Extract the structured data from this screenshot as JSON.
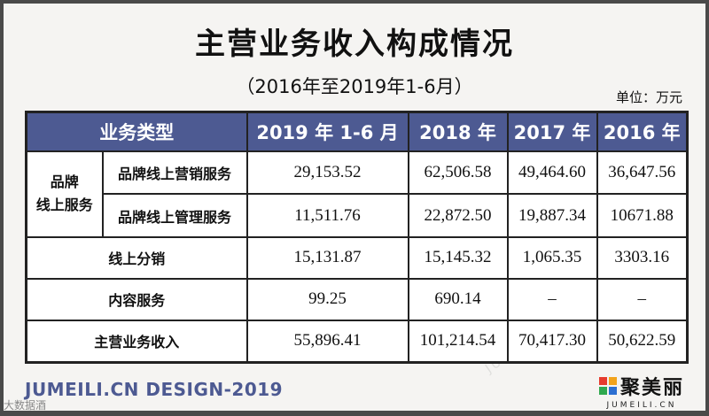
{
  "title": "主营业务收入构成情况",
  "subtitle": "（2016年至2019年1-6月）",
  "unit": "单位：万元",
  "table": {
    "headers": [
      "业务类型",
      "2019 年 1-6 月",
      "2018 年",
      "2017 年",
      "2016 年"
    ],
    "group_label": "品牌\n线上服务",
    "rows": [
      {
        "label": "品牌线上营销服务",
        "values": [
          "29,153.52",
          "62,506.58",
          "49,464.60",
          "36,647.56"
        ]
      },
      {
        "label": "品牌线上管理服务",
        "values": [
          "11,511.76",
          "22,872.50",
          "19,887.34",
          "10671.88"
        ]
      },
      {
        "label": "线上分销",
        "values": [
          "15,131.87",
          "15,145.32",
          "1,065.35",
          "3303.16"
        ]
      },
      {
        "label": "内容服务",
        "values": [
          "99.25",
          "690.14",
          "–",
          "–"
        ]
      },
      {
        "label": "主营业务收入",
        "values": [
          "55,896.41",
          "101,214.54",
          "70,417.30",
          "50,622.59"
        ]
      }
    ]
  },
  "footer": {
    "design_text": "JUMEILI.CN DESIGN-2019",
    "logo_name": "聚美丽",
    "logo_url": "JUMEILI.CN",
    "logo_colors": [
      "#e63b2e",
      "#f2a31b",
      "#2fa84f",
      "#2c6fd1"
    ]
  },
  "watermark": "JUMEILI.CN",
  "corner_mark": "大数据酒"
}
